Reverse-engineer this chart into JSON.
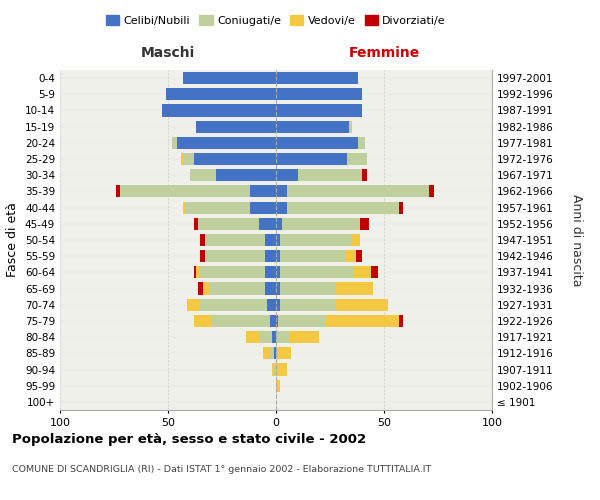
{
  "age_groups": [
    "100+",
    "95-99",
    "90-94",
    "85-89",
    "80-84",
    "75-79",
    "70-74",
    "65-69",
    "60-64",
    "55-59",
    "50-54",
    "45-49",
    "40-44",
    "35-39",
    "30-34",
    "25-29",
    "20-24",
    "15-19",
    "10-14",
    "5-9",
    "0-4"
  ],
  "birth_years": [
    "≤ 1901",
    "1902-1906",
    "1907-1911",
    "1912-1916",
    "1917-1921",
    "1922-1926",
    "1927-1931",
    "1932-1936",
    "1937-1941",
    "1942-1946",
    "1947-1951",
    "1952-1956",
    "1957-1961",
    "1962-1966",
    "1967-1971",
    "1972-1976",
    "1977-1981",
    "1982-1986",
    "1987-1991",
    "1992-1996",
    "1997-2001"
  ],
  "colors": {
    "celibe": "#4472C4",
    "coniugato": "#BFCF9E",
    "vedovo": "#F5C842",
    "divorziato": "#C00000"
  },
  "maschi": {
    "celibe": [
      0,
      0,
      0,
      1,
      2,
      3,
      4,
      5,
      5,
      5,
      5,
      8,
      12,
      12,
      28,
      38,
      46,
      37,
      53,
      51,
      43
    ],
    "coniugato": [
      0,
      0,
      1,
      2,
      6,
      27,
      31,
      26,
      30,
      28,
      28,
      28,
      30,
      60,
      12,
      5,
      2,
      0,
      0,
      0,
      0
    ],
    "vedovo": [
      0,
      0,
      1,
      3,
      6,
      8,
      6,
      3,
      2,
      0,
      0,
      0,
      1,
      0,
      0,
      1,
      0,
      0,
      0,
      0,
      0
    ],
    "divorziato": [
      0,
      0,
      0,
      0,
      0,
      0,
      0,
      2,
      1,
      2,
      2,
      2,
      0,
      2,
      0,
      0,
      0,
      0,
      0,
      0,
      0
    ]
  },
  "femmine": {
    "nubile": [
      0,
      0,
      0,
      0,
      0,
      1,
      2,
      2,
      2,
      2,
      2,
      3,
      5,
      5,
      10,
      33,
      38,
      34,
      40,
      40,
      38
    ],
    "coniugata": [
      0,
      0,
      0,
      1,
      6,
      22,
      26,
      26,
      34,
      30,
      33,
      36,
      52,
      66,
      30,
      9,
      3,
      1,
      0,
      0,
      0
    ],
    "vedova": [
      0,
      2,
      5,
      6,
      14,
      34,
      24,
      17,
      8,
      5,
      4,
      0,
      0,
      0,
      0,
      0,
      0,
      0,
      0,
      0,
      0
    ],
    "divorziata": [
      0,
      0,
      0,
      0,
      0,
      2,
      0,
      0,
      3,
      3,
      0,
      4,
      2,
      2,
      2,
      0,
      0,
      0,
      0,
      0,
      0
    ]
  },
  "xlim": 100,
  "title": "Popolazione per età, sesso e stato civile - 2002",
  "subtitle": "COMUNE DI SCANDRIGLIA (RI) - Dati ISTAT 1° gennaio 2002 - Elaborazione TUTTITALIA.IT",
  "ylabel": "Fasce di età",
  "ylabel_right": "Anni di nascita",
  "xlabel_left": "Maschi",
  "xlabel_right": "Femmine",
  "bg_color": "#F0F0EB",
  "grid_color": "#CCCCCC"
}
